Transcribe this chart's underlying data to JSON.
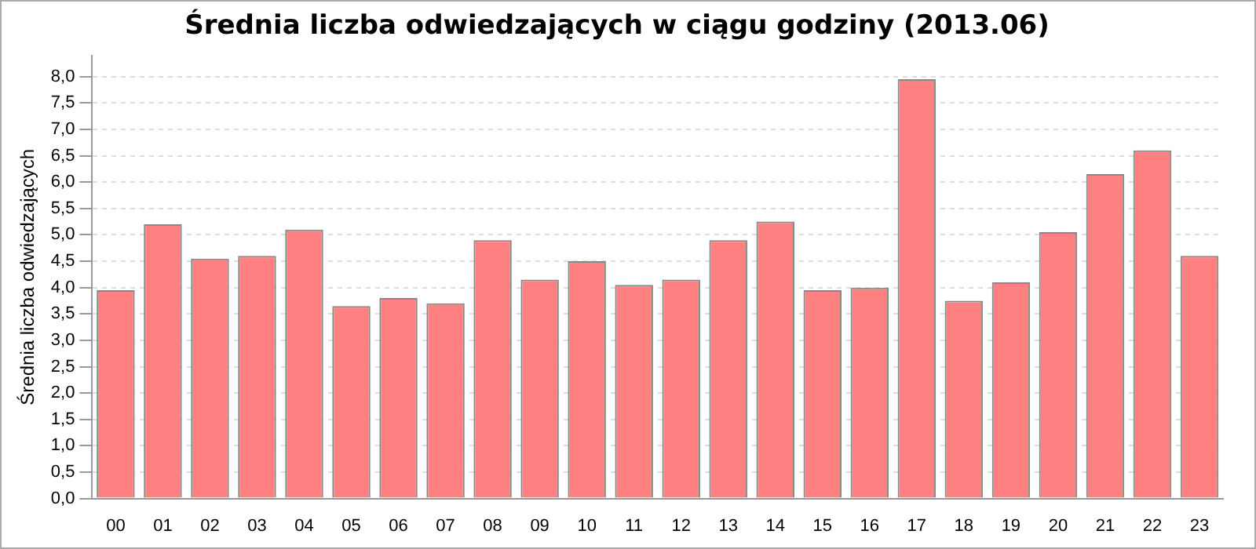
{
  "chart_data": {
    "type": "bar",
    "title": "Średnia liczba odwiedzających w ciągu godziny (2013.06)",
    "ylabel": "Średnia liczba odwiedzających",
    "categories": [
      "00",
      "01",
      "02",
      "03",
      "04",
      "05",
      "06",
      "07",
      "08",
      "09",
      "10",
      "11",
      "12",
      "13",
      "14",
      "15",
      "16",
      "17",
      "18",
      "19",
      "20",
      "21",
      "22",
      "23"
    ],
    "values": [
      3.95,
      5.2,
      4.55,
      4.6,
      5.1,
      3.65,
      3.8,
      3.7,
      4.9,
      4.15,
      4.5,
      4.05,
      4.15,
      4.9,
      5.25,
      3.95,
      4.0,
      7.95,
      3.75,
      4.1,
      5.05,
      6.15,
      6.6,
      4.6
    ],
    "color": "#ff8080",
    "ylim": [
      0,
      8.4
    ],
    "yticks": [
      {
        "value": 0,
        "label": "0,0"
      },
      {
        "value": 0.5,
        "label": "0,5"
      },
      {
        "value": 1,
        "label": "1,0"
      },
      {
        "value": 1.5,
        "label": "1,5"
      },
      {
        "value": 2,
        "label": "2,0"
      },
      {
        "value": 2.5,
        "label": "2,5"
      },
      {
        "value": 3,
        "label": "3,0"
      },
      {
        "value": 3.5,
        "label": "3,5"
      },
      {
        "value": 4,
        "label": "4,0"
      },
      {
        "value": 4.5,
        "label": "4,5"
      },
      {
        "value": 5,
        "label": "5,0"
      },
      {
        "value": 5.5,
        "label": "5,5"
      },
      {
        "value": 6,
        "label": "6,0"
      },
      {
        "value": 6.5,
        "label": "6,5"
      },
      {
        "value": 7,
        "label": "7,0"
      },
      {
        "value": 7.5,
        "label": "7,5"
      },
      {
        "value": 8,
        "label": "8,0"
      }
    ],
    "grid": "y"
  }
}
